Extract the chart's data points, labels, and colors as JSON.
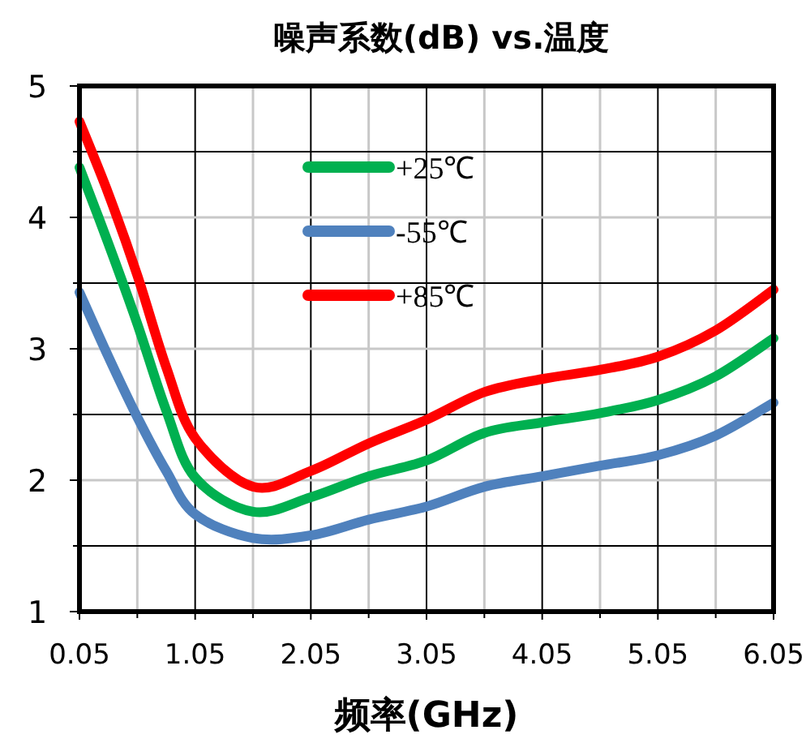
{
  "chart_data": {
    "type": "line",
    "title": "噪声系数(dB) vs.温度",
    "xlabel": "频率(GHz)",
    "xlim": [
      0.05,
      6.05
    ],
    "xticks": [
      {
        "value": 0.05,
        "label": "0.05"
      },
      {
        "value": 1.05,
        "label": "1.05"
      },
      {
        "value": 2.05,
        "label": "2.05"
      },
      {
        "value": 3.05,
        "label": "3.05"
      },
      {
        "value": 4.05,
        "label": "4.05"
      },
      {
        "value": 5.05,
        "label": "5.05"
      },
      {
        "value": 6.05,
        "label": "6.05"
      }
    ],
    "ylim": [
      1,
      5
    ],
    "yticks": [
      1,
      2,
      3,
      4,
      5
    ],
    "grid": true,
    "legend": "top",
    "marker": "none",
    "line_style": "solid",
    "x": [
      0.05,
      0.3,
      0.55,
      0.8,
      1.05,
      1.55,
      2.05,
      2.55,
      3.05,
      3.55,
      4.05,
      4.55,
      5.05,
      5.55,
      6.05
    ],
    "series": [
      {
        "name": "+25℃",
        "color": "#00b050",
        "values": [
          4.38,
          3.8,
          3.19,
          2.53,
          2.02,
          1.76,
          1.87,
          2.03,
          2.15,
          2.36,
          2.44,
          2.51,
          2.61,
          2.79,
          3.08
        ]
      },
      {
        "name": "-55℃",
        "color": "#4f81bd",
        "values": [
          3.43,
          2.94,
          2.48,
          2.07,
          1.74,
          1.56,
          1.58,
          1.7,
          1.8,
          1.95,
          2.03,
          2.11,
          2.19,
          2.34,
          2.59
        ]
      },
      {
        "name": "+85℃",
        "color": "#ff0000",
        "values": [
          4.73,
          4.18,
          3.56,
          2.86,
          2.32,
          1.95,
          2.07,
          2.28,
          2.46,
          2.67,
          2.77,
          2.84,
          2.94,
          3.14,
          3.45
        ]
      }
    ]
  }
}
